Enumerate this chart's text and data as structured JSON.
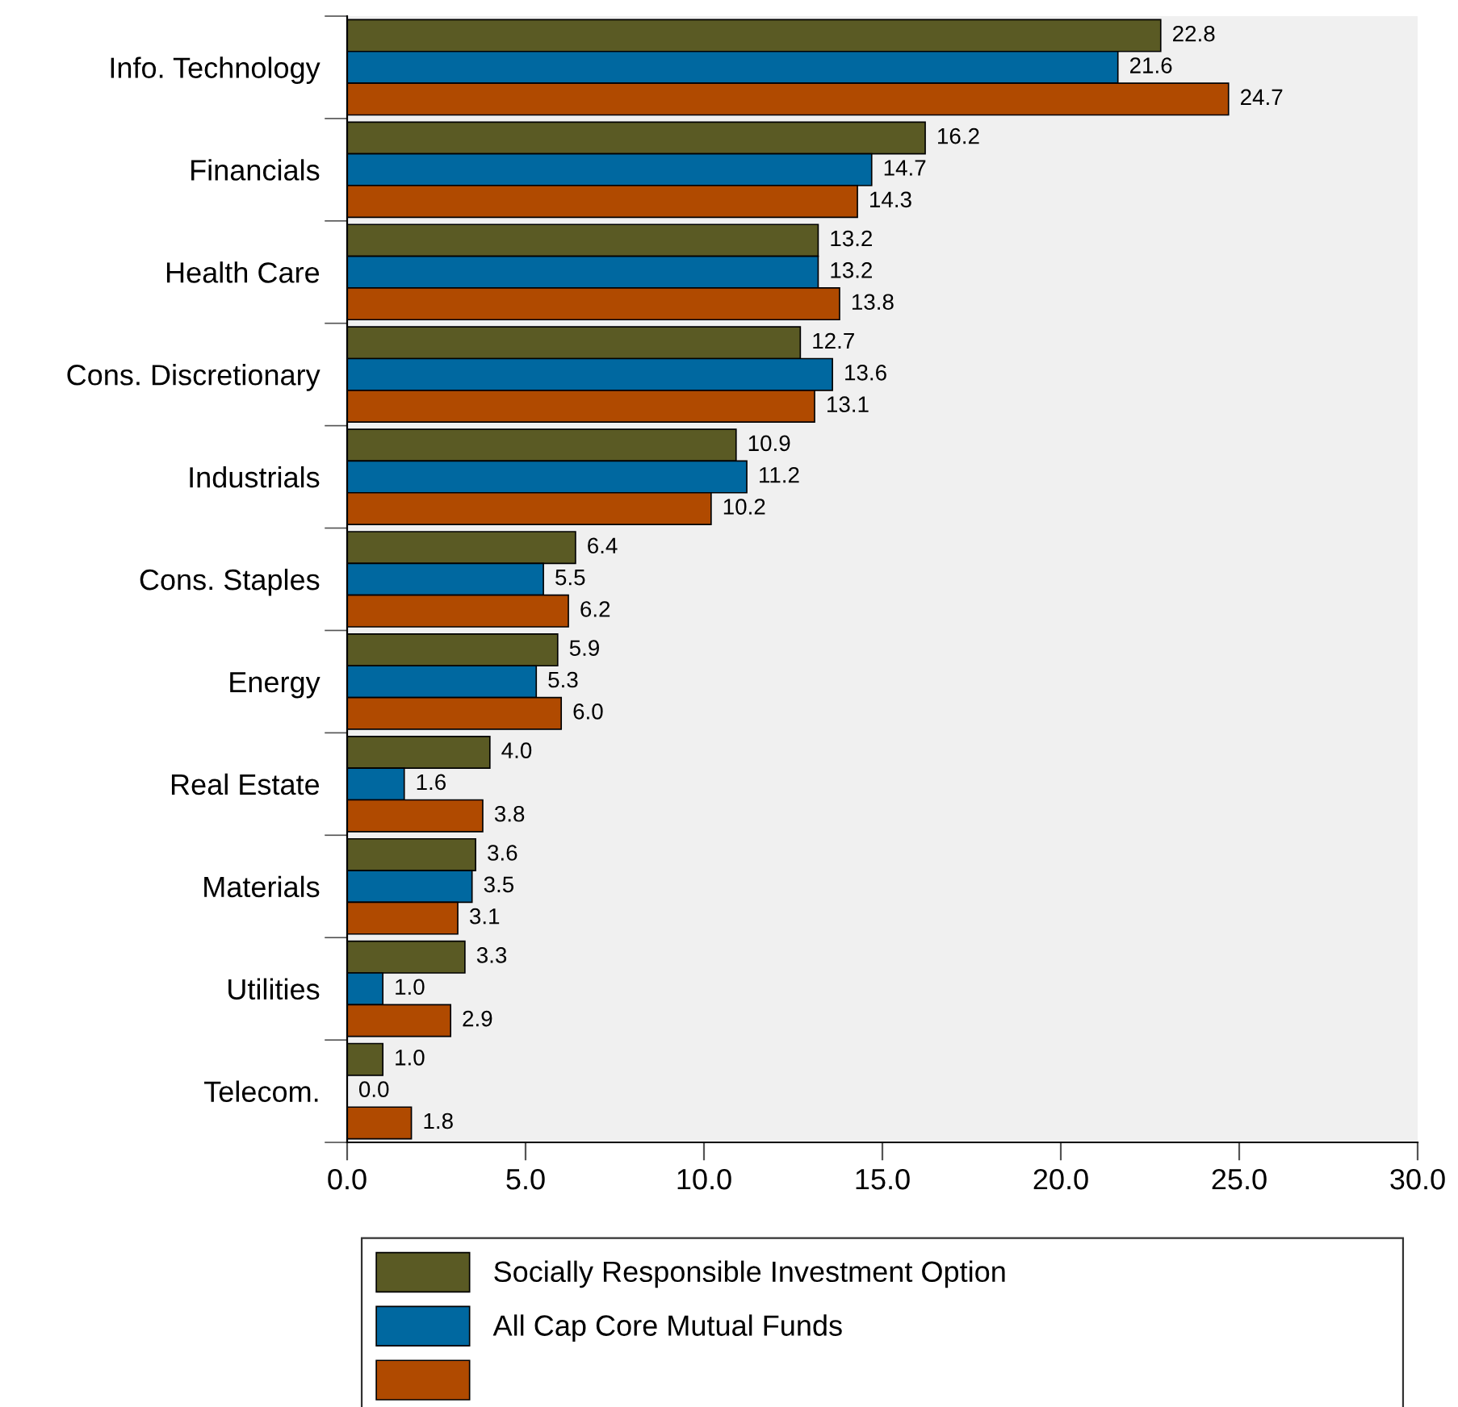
{
  "chart_data": {
    "type": "bar",
    "orientation": "horizontal",
    "categories": [
      "Info. Technology",
      "Financials",
      "Health Care",
      "Cons. Discretionary",
      "Industrials",
      "Cons. Staples",
      "Energy",
      "Real Estate",
      "Materials",
      "Utilities",
      "Telecom."
    ],
    "series": [
      {
        "name": "Socially Responsible Investment Option",
        "color": "#5a5a24",
        "values": [
          22.8,
          16.2,
          13.2,
          12.7,
          10.9,
          6.4,
          5.9,
          4.0,
          3.6,
          3.3,
          1.0
        ],
        "value_labels": [
          "22.8",
          "16.2",
          "13.2",
          "12.7",
          "10.9",
          "6.4",
          "5.9",
          "4.0",
          "3.6",
          "3.3",
          "1.0"
        ]
      },
      {
        "name": "All Cap Core Mutual Funds",
        "color": "#0068a0",
        "values": [
          21.6,
          14.7,
          13.2,
          13.6,
          11.2,
          5.5,
          5.3,
          1.6,
          3.5,
          1.0,
          0.0
        ],
        "value_labels": [
          "21.6",
          "14.7",
          "13.2",
          "13.6",
          "11.2",
          "5.5",
          "5.3",
          "1.6",
          "3.5",
          "1.0",
          "0.0"
        ]
      },
      {
        "color": "#b04a00",
        "values": [
          24.7,
          14.3,
          13.8,
          13.1,
          10.2,
          6.2,
          6.0,
          3.8,
          3.1,
          2.9,
          1.8
        ],
        "value_labels": [
          "24.7",
          "14.3",
          "13.8",
          "13.1",
          "10.2",
          "6.2",
          "6.0",
          "3.8",
          "3.1",
          "2.9",
          "1.8"
        ]
      }
    ],
    "xlim": [
      0,
      30
    ],
    "xticks": [
      {
        "value": 0,
        "label": "0.0"
      },
      {
        "value": 5,
        "label": "5.0"
      },
      {
        "value": 10,
        "label": "10.0"
      },
      {
        "value": 15,
        "label": "15.0"
      },
      {
        "value": 20,
        "label": "20.0"
      },
      {
        "value": 25,
        "label": "25.0"
      },
      {
        "value": 30,
        "label": "30.0"
      }
    ],
    "legend": "bottom",
    "grid": false
  }
}
